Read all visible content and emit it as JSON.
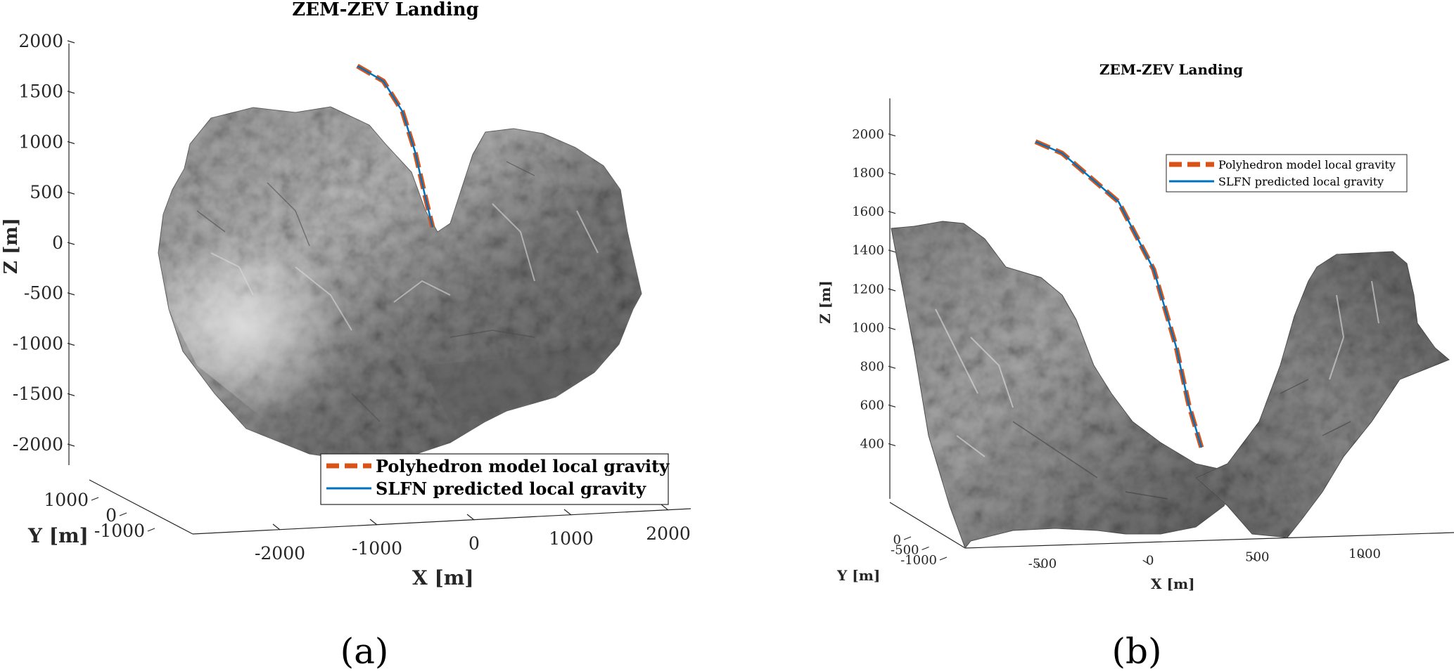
{
  "chart_data": [
    {
      "panel_label": "(a)",
      "type": "line3d",
      "title": "ZEM-ZEV Landing",
      "xlabel": "X [m]",
      "ylabel": "Y [m]",
      "zlabel": "Z [m]",
      "x_ticks": [
        "-2000",
        "-1000",
        "0",
        "1000",
        "2000"
      ],
      "y_ticks": [
        "1000",
        "0",
        "-1000"
      ],
      "z_ticks": [
        "2000",
        "1500",
        "1000",
        "500",
        "0",
        "-500",
        "-1000",
        "-1500",
        "-2000"
      ],
      "zlim": [
        -2000,
        2000
      ],
      "surface": "comet polyhedron shape model (gray shaded)",
      "legend_position": "bottom-right",
      "colors": {
        "polyhedron": "#D95319",
        "slfn": "#0072BD",
        "surface": "#7a7a7a"
      },
      "series": [
        {
          "name": "Polyhedron model local gravity",
          "style": "dashed",
          "color": "#D95319",
          "z": [
            1750,
            1600,
            1300,
            900,
            500,
            150
          ]
        },
        {
          "name": "SLFN predicted local gravity",
          "style": "solid",
          "color": "#0072BD",
          "z": [
            1750,
            1600,
            1300,
            900,
            500,
            150
          ]
        }
      ]
    },
    {
      "panel_label": "(b)",
      "type": "line3d",
      "title": "ZEM-ZEV Landing",
      "xlabel": "X [m]",
      "ylabel": "Y [m]",
      "zlabel": "Z [m]",
      "x_ticks": [
        "-500",
        "0",
        "500",
        "1000"
      ],
      "y_ticks": [
        "0",
        "-500",
        "-1000"
      ],
      "z_ticks": [
        "2000",
        "1800",
        "1600",
        "1400",
        "1200",
        "1000",
        "800",
        "600",
        "400"
      ],
      "zlim": [
        300,
        2100
      ],
      "surface": "local terrain patch near landing site (gray shaded)",
      "legend_position": "top-right",
      "colors": {
        "polyhedron": "#D95319",
        "slfn": "#0072BD",
        "surface": "#7a7a7a"
      },
      "series": [
        {
          "name": "Polyhedron model local gravity",
          "style": "dashed",
          "color": "#D95319",
          "z": [
            1960,
            1900,
            1650,
            1300,
            900,
            600,
            380
          ]
        },
        {
          "name": "SLFN predicted local gravity",
          "style": "solid",
          "color": "#0072BD",
          "z": [
            1960,
            1900,
            1650,
            1300,
            900,
            600,
            380
          ]
        }
      ]
    }
  ]
}
